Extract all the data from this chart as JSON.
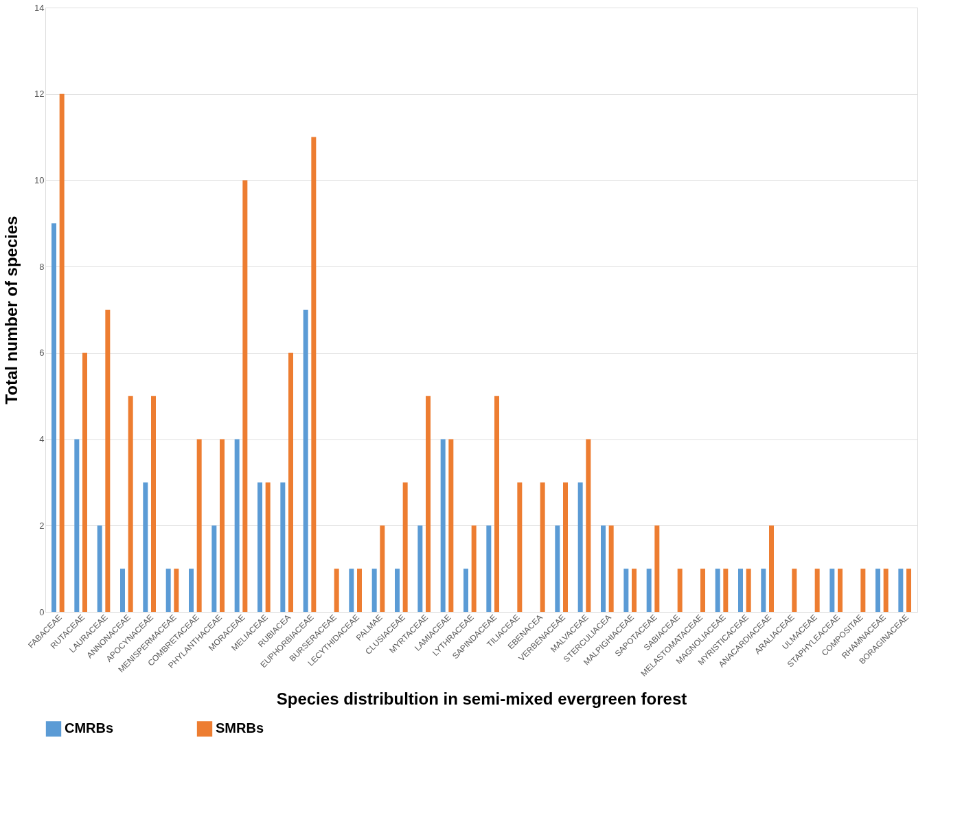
{
  "chart_data": {
    "type": "bar",
    "xlabel": "Species distribultion in semi-mixed evergreen forest",
    "ylabel": "Total number of species",
    "categories": [
      "FABACEAE",
      "RUTACEAE",
      "LAURACEAE",
      "ANNONACEAE",
      "APOCYNACEAE",
      "MENISPERMACEAE",
      "COMBRETACEAE",
      "PHYLANTHACEAE",
      "MORACEAE",
      "MELIACEAE",
      "RUBIACEA",
      "EUPHORBIACEAE",
      "BURSERACEAE",
      "LECYTHIDACEAE",
      "PALMAE",
      "CLUSIACEAE",
      "MYRTACEAE",
      "LAMIACEAE",
      "LYTHRACEAE",
      "SAPINDACEAE",
      "TILIACEAE",
      "EBENACEA",
      "VERBENACEAE",
      "MALVACEAE",
      "STERCULIACEA",
      "MALPIGHIACEAE",
      "SAPOTACEAE",
      "SABIACEAE",
      "MELASTOMATACEAE",
      "MAGNOLIACEAE",
      "MYRISTICACEAE",
      "ANACARDIACEAE",
      "ARALIACEAE",
      "ULMACEAE",
      "STAPHYLEACEAE",
      "COMPOSITAE",
      "RHAMNACEAE",
      "BORAGINACEAE"
    ],
    "series": [
      {
        "name": "CMRBs",
        "color": "#5b9bd5",
        "values": [
          9,
          4,
          2,
          1,
          3,
          1,
          1,
          2,
          4,
          3,
          3,
          7,
          null,
          1,
          1,
          1,
          2,
          4,
          1,
          2,
          null,
          null,
          2,
          3,
          2,
          1,
          1,
          null,
          null,
          1,
          1,
          1,
          null,
          null,
          1,
          null,
          1,
          1
        ]
      },
      {
        "name": "SMRBs",
        "color": "#ed7d31",
        "values": [
          12,
          6,
          7,
          5,
          5,
          1,
          4,
          4,
          10,
          3,
          6,
          11,
          1,
          1,
          2,
          3,
          5,
          4,
          2,
          5,
          3,
          3,
          3,
          4,
          2,
          1,
          2,
          1,
          1,
          1,
          1,
          2,
          1,
          1,
          1,
          1,
          1,
          1
        ]
      }
    ],
    "ylim": [
      0,
      14
    ],
    "yticks": [
      0,
      2,
      4,
      6,
      8,
      10,
      12,
      14
    ],
    "grid": "y",
    "legend": "bottom"
  }
}
